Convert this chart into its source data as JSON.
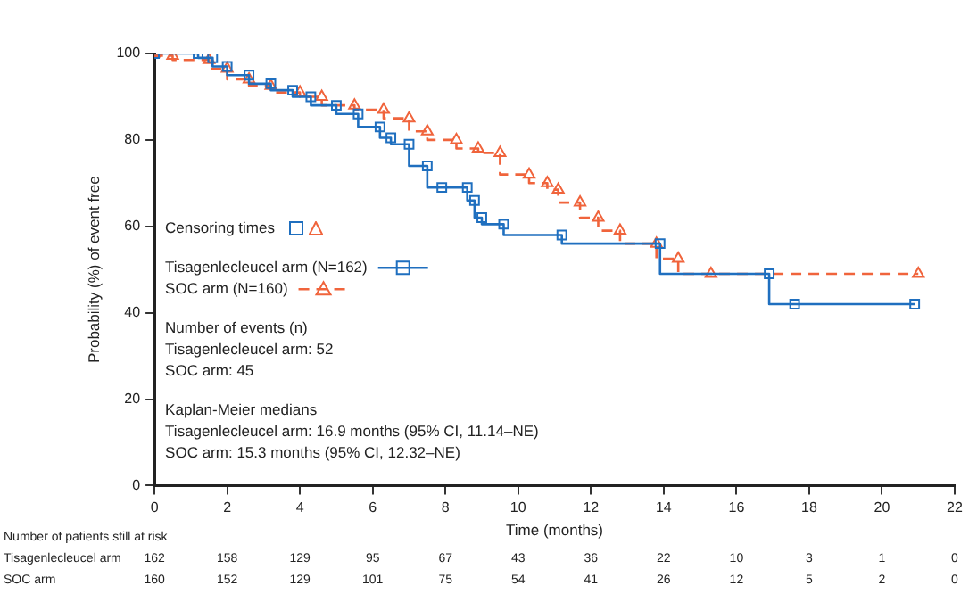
{
  "chart_data": {
    "type": "step",
    "xlabel": "Time (months)",
    "ylabel": "Probability (%) of event free",
    "xlim": [
      0,
      22
    ],
    "xticks": [
      0,
      2,
      4,
      6,
      8,
      10,
      12,
      14,
      16,
      18,
      20,
      22
    ],
    "ylim": [
      0,
      100
    ],
    "yticks": [
      0,
      20,
      40,
      60,
      80,
      100
    ],
    "grid": false,
    "legend": "left",
    "series": [
      {
        "name": "Tisagenlecleucel arm (N=162)",
        "color": "#1f6fbf",
        "marker": "square",
        "line_style": "solid",
        "x": [
          0,
          1.2,
          1.6,
          2.0,
          2.6,
          3.2,
          3.8,
          4.3,
          5.0,
          5.6,
          6.2,
          6.5,
          7.0,
          7.5,
          7.9,
          8.6,
          8.8,
          9.0,
          9.6,
          11.2,
          13.9,
          16.9,
          17.6,
          20.9
        ],
        "values": [
          100,
          100,
          99,
          97,
          95,
          93,
          91.5,
          90,
          88,
          86,
          83,
          80.5,
          79,
          74,
          69,
          69,
          66,
          62,
          60.5,
          58,
          56,
          49,
          42,
          42
        ]
      },
      {
        "name": "SOC arm (N=160)",
        "color": "#f0643c",
        "marker": "triangle",
        "line_style": "dashed",
        "x": [
          0,
          0.5,
          1.5,
          2.0,
          2.6,
          3.2,
          4.0,
          4.6,
          5.5,
          6.3,
          7.0,
          7.5,
          8.3,
          8.9,
          9.5,
          10.3,
          10.8,
          11.1,
          11.7,
          12.2,
          12.8,
          13.8,
          14.4,
          15.3,
          21.0
        ],
        "values": [
          100,
          99.5,
          98.5,
          96.5,
          94,
          92.5,
          91,
          90,
          88,
          87,
          85,
          82,
          80,
          78,
          77,
          72,
          70,
          68.5,
          65.5,
          62,
          59,
          56,
          52.5,
          49,
          49
        ]
      }
    ],
    "annotations": [
      "Censoring times",
      "Number of events (n)",
      "Tisagenlecleucel arm: 52",
      "SOC arm: 45",
      "Kaplan-Meier medians",
      "Tisagenlecleucel arm: 16.9 months (95% CI, 11.14–NE)",
      "SOC arm: 15.3 months (95% CI, 12.32–NE)",
      "Number of patients still at risk",
      "Tisagenlecleucel arm",
      "162",
      "158",
      "129",
      "95",
      "67",
      "43",
      "36",
      "22",
      "10",
      "3",
      "1",
      "0",
      "SOC arm",
      "160",
      "152",
      "129",
      "101",
      "75",
      "54",
      "41",
      "26",
      "12",
      "5",
      "2",
      "0"
    ]
  }
}
